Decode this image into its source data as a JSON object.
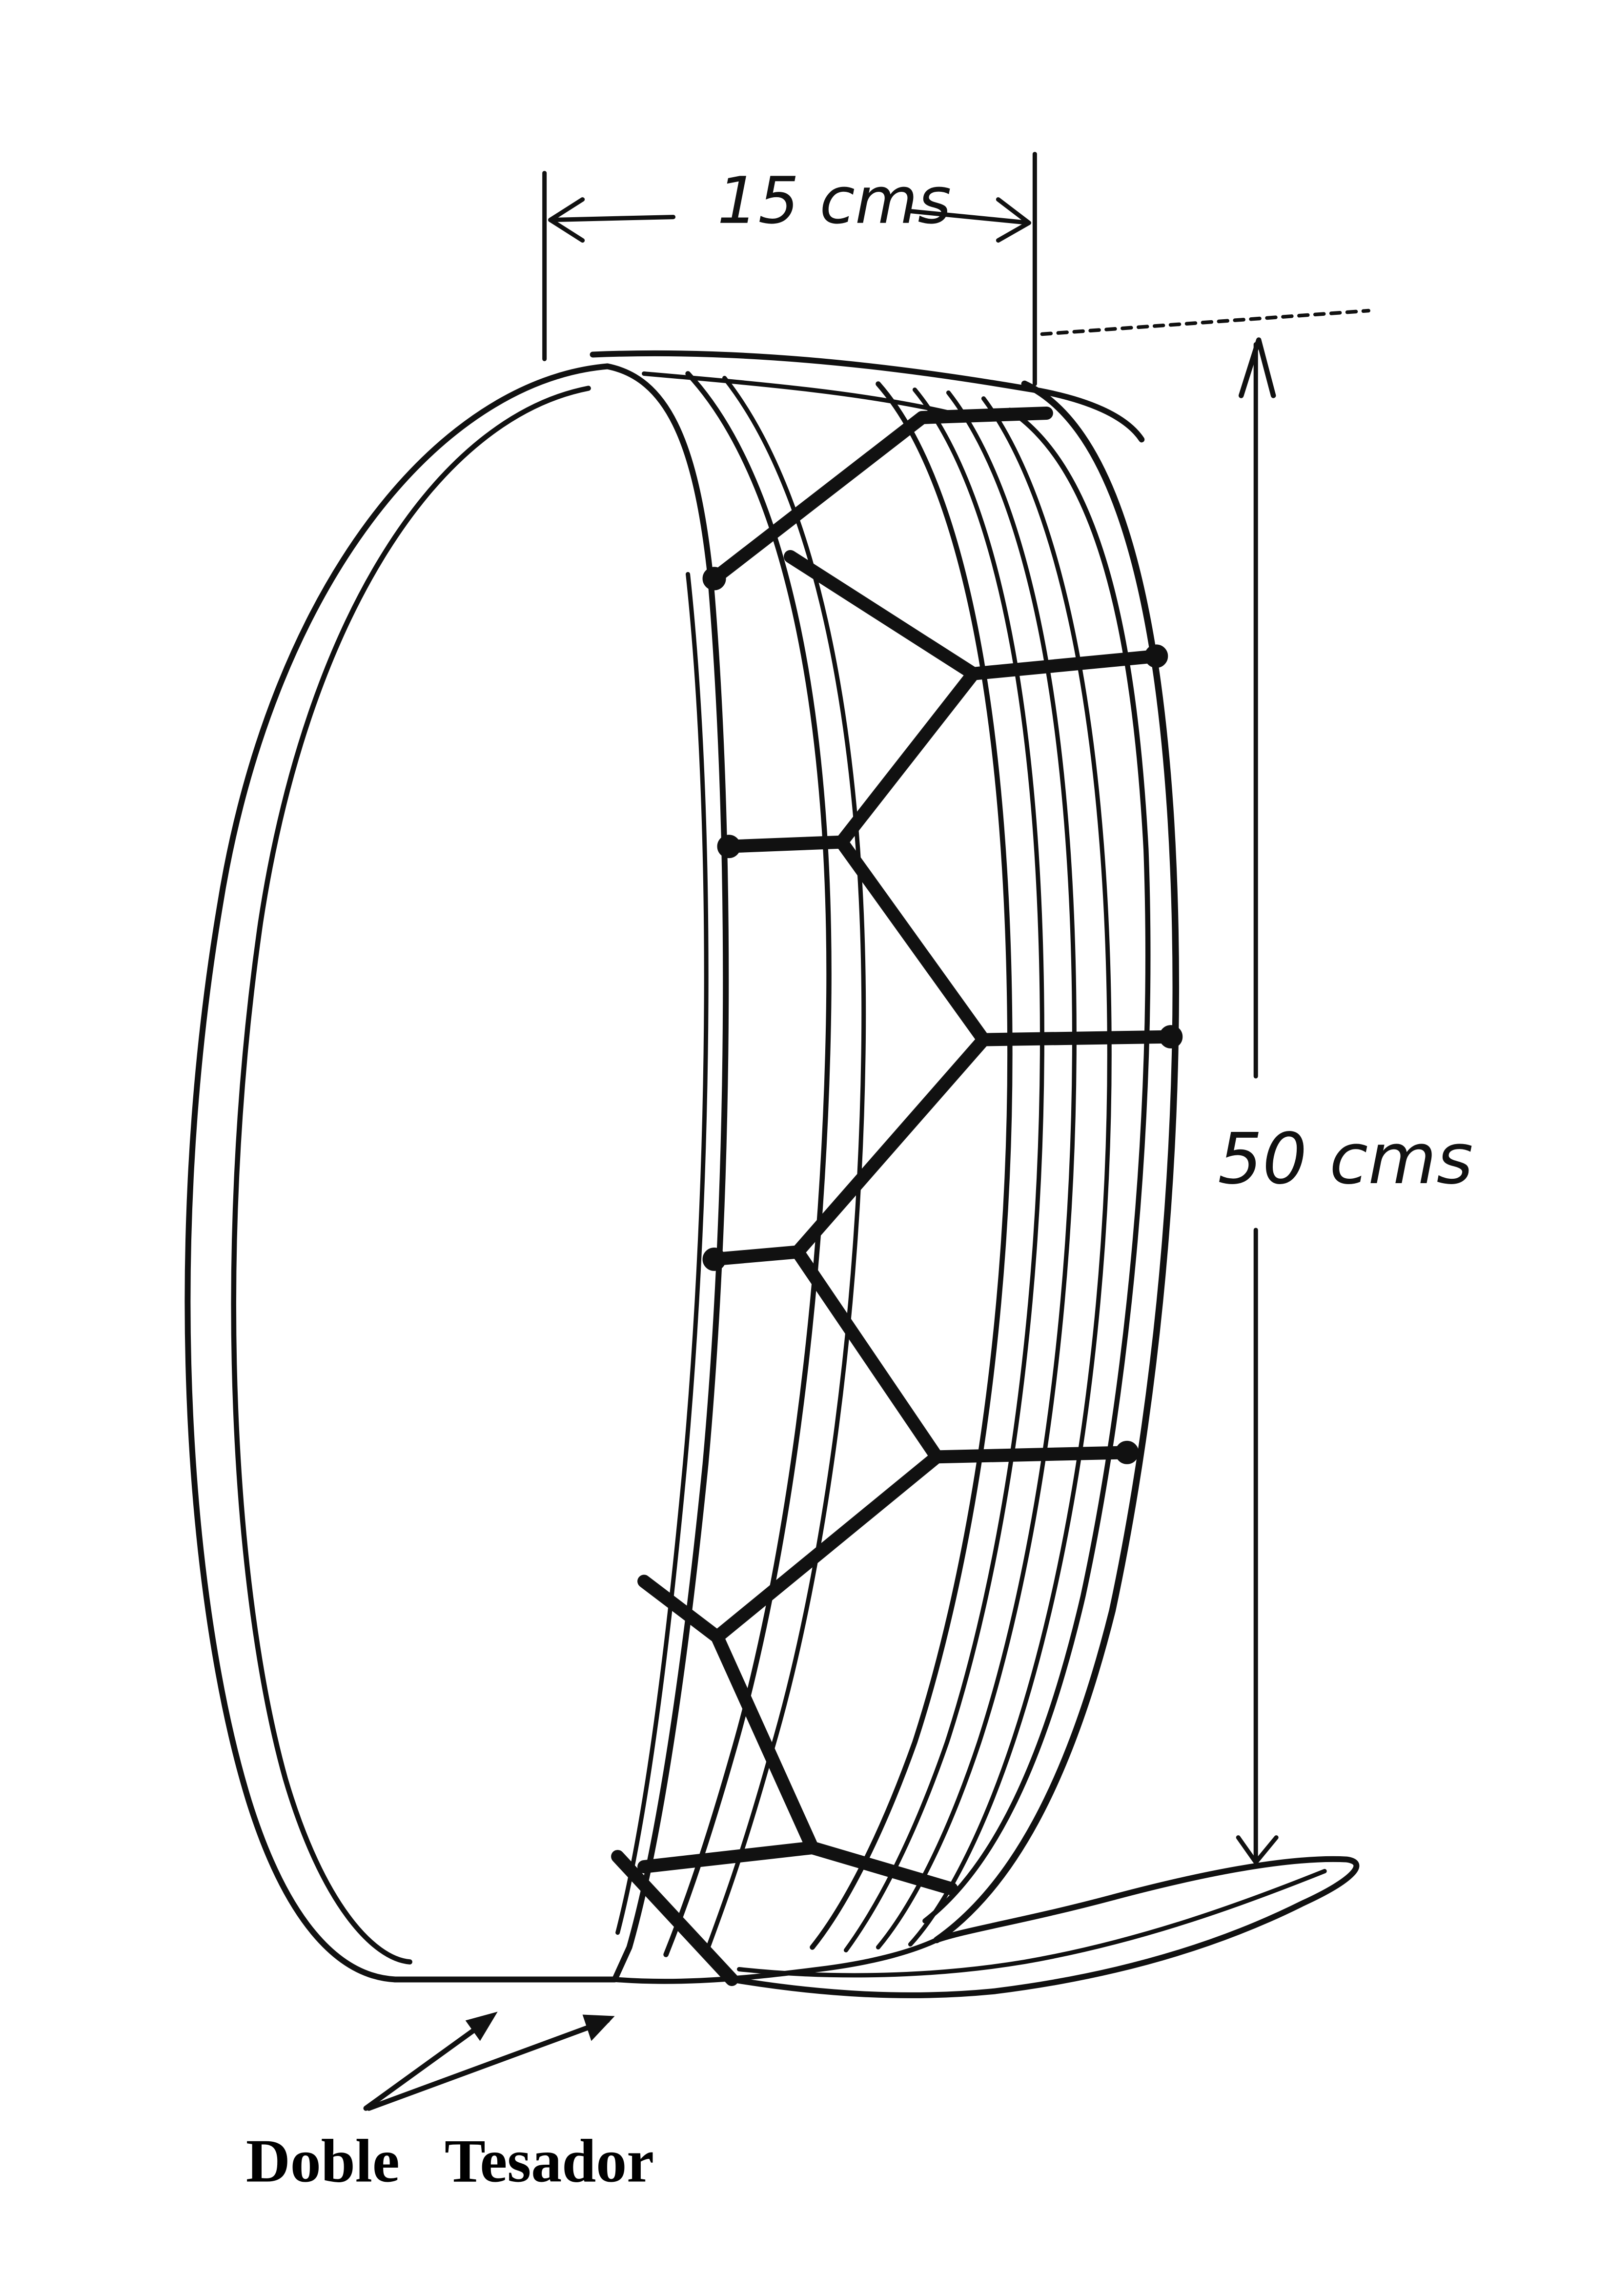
{
  "dimensions": {
    "width_label": "15 cms",
    "height_label": "50 cms"
  },
  "caption": "Doble   Tesador",
  "colors": {
    "ink": "#111111",
    "paper": "#ffffff"
  }
}
